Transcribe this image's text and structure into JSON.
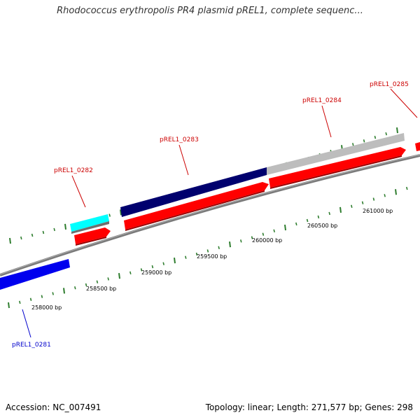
{
  "title": "Rhodococcus erythropolis PR4 plasmid pREL1, complete sequenc...",
  "footer": {
    "accession": "Accession: NC_007491",
    "summary": "Topology: linear; Length: 271,577 bp; Genes: 298"
  },
  "colors": {
    "backbone": "#808080",
    "tick": "#2e7d2e",
    "gene_forward": "#ff0000",
    "gene_label_red": "#cc0000",
    "gene_label_blue": "#0000cc",
    "feature_navy": "#00006e",
    "feature_blue": "#0000ff",
    "feature_cyan": "#00ffff",
    "feature_grey": "#bdbdbd"
  },
  "ruler": {
    "unit": "bp",
    "labels": [
      "258000 bp",
      "258500 bp",
      "259000 bp",
      "259500 bp",
      "260000 bp",
      "260500 bp",
      "261000 bp"
    ]
  },
  "genes": [
    {
      "id": "gene-0281",
      "label": "pREL1_0281",
      "color": "blue"
    },
    {
      "id": "gene-0282",
      "label": "pREL1_0282",
      "color": "red"
    },
    {
      "id": "gene-0283",
      "label": "pREL1_0283",
      "color": "red"
    },
    {
      "id": "gene-0284",
      "label": "pREL1_0284",
      "color": "red"
    },
    {
      "id": "gene-0285",
      "label": "pREL1_0285",
      "color": "red"
    }
  ]
}
